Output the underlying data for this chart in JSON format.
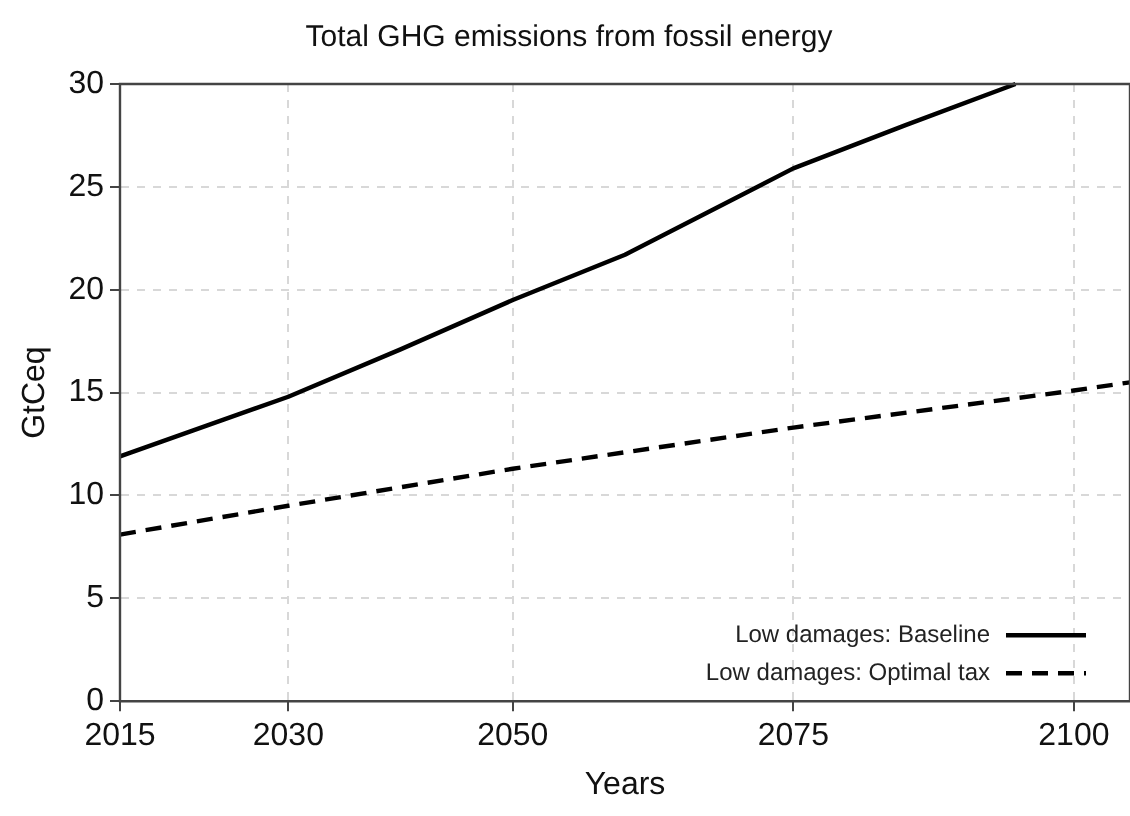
{
  "chart_data": {
    "type": "line",
    "title": "Total GHG emissions from fossil energy",
    "xlabel": "Years",
    "ylabel": "GtCeq",
    "xlim": [
      2015,
      2105
    ],
    "xticks": [
      2015,
      2030,
      2050,
      2075,
      2100
    ],
    "ylim": [
      0,
      30
    ],
    "yticks": [
      0,
      5,
      10,
      15,
      20,
      25,
      30
    ],
    "grid": true,
    "legend": "bottom right",
    "marker": "none",
    "series": [
      {
        "name": "Low damages: Baseline",
        "color": "#000000",
        "line_style": "solid",
        "x": [
          2015,
          2030,
          2040,
          2050,
          2060,
          2075,
          2085,
          2094.8
        ],
        "values": [
          11.9,
          14.8,
          17.1,
          19.5,
          21.7,
          25.9,
          28.0,
          30
        ]
      },
      {
        "name": "Low damages: Optimal tax",
        "color": "#000000",
        "line_style": "dashed",
        "x": [
          2015,
          2030,
          2050,
          2075,
          2100,
          2105
        ],
        "values": [
          8.1,
          9.5,
          11.3,
          13.3,
          15.1,
          15.5
        ]
      }
    ]
  }
}
